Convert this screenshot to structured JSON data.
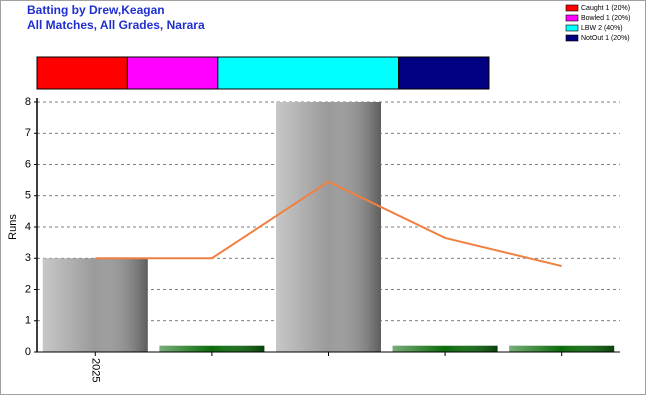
{
  "chart_data": {
    "type": "bar",
    "title": "Batting by Drew,Keagan",
    "subtitle": "All Matches, All Grades, Narara",
    "ylabel": "Runs",
    "categories": [
      "2025",
      null,
      null,
      null,
      null
    ],
    "values": [
      3,
      0.2,
      8,
      0.2,
      0.2
    ],
    "bar_colors": [
      "#9a9a9a",
      "#0b6b0b",
      "#9a9a9a",
      "#0b6b0b",
      "#0b6b0b"
    ],
    "line": {
      "type": "line",
      "color": "#f08040",
      "values": [
        3,
        3,
        5.45,
        3.65,
        2.75
      ]
    },
    "ylim": [
      0,
      8
    ],
    "yticks": [
      0,
      1,
      2,
      3,
      4,
      5,
      6,
      7,
      8
    ],
    "grid": true,
    "legend": "top-right",
    "dismissals": [
      {
        "label": "Caught 1 (20%)",
        "value": 20,
        "color": "#ff0000"
      },
      {
        "label": "Bowled 1 (20%)",
        "value": 20,
        "color": "#ff00ff"
      },
      {
        "label": "LBW 2 (40%)",
        "value": 40,
        "color": "#00ffff"
      },
      {
        "label": "NotOut 1 (20%)",
        "value": 20,
        "color": "#000080"
      }
    ]
  }
}
